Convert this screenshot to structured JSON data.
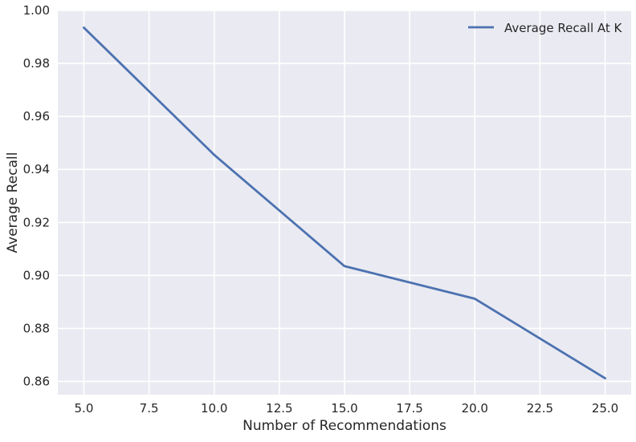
{
  "chart_data": {
    "type": "line",
    "title": "",
    "xlabel": "Number of Recommendations",
    "ylabel": "Average Recall",
    "xlim": [
      4.0,
      26.0
    ],
    "ylim": [
      0.855,
      1.0
    ],
    "xticks": [
      "5.0",
      "7.5",
      "10.0",
      "12.5",
      "15.0",
      "17.5",
      "20.0",
      "22.5",
      "25.0"
    ],
    "yticks": [
      "0.86",
      "0.88",
      "0.90",
      "0.92",
      "0.94",
      "0.96",
      "0.98",
      "1.00"
    ],
    "grid": true,
    "legend_position": "top-right",
    "series": [
      {
        "name": "Average Recall At K",
        "color": "#4c72b0",
        "x": [
          5,
          10,
          15,
          20,
          25
        ],
        "y": [
          0.9935,
          0.9455,
          0.9035,
          0.8912,
          0.8612
        ]
      }
    ],
    "colors": {
      "plot_background": "#eaeaf2",
      "grid": "#ffffff",
      "line": "#4c72b0"
    }
  }
}
